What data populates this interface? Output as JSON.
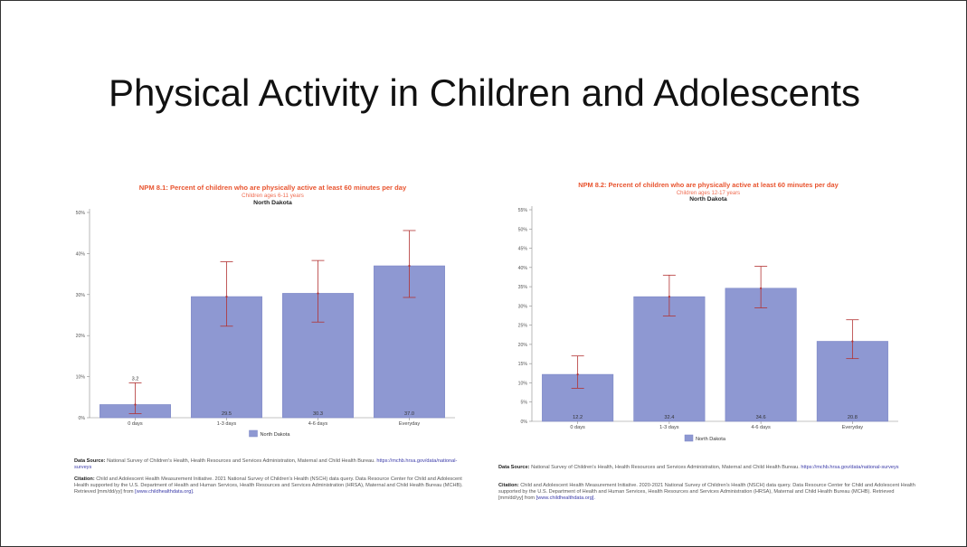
{
  "slide": {
    "title": "Physical Activity in Children and Adolescents"
  },
  "colors": {
    "bar": "#8e98d2",
    "bar_border": "#7b86c6",
    "error_bar": "#b23232",
    "title": "#e8542f",
    "subtitle": "#ef6d52"
  },
  "chart_data": [
    {
      "type": "bar",
      "title": "NPM 8.1: Percent of children who are physically active at least 60 minutes per day",
      "subtitle": "Children ages 6-11 years",
      "location": "North Dakota",
      "categories": [
        "0 days",
        "1-3 days",
        "4-6 days",
        "Everyday"
      ],
      "series": [
        {
          "name": "North Dakota",
          "values": [
            3.2,
            29.5,
            30.3,
            37.0
          ],
          "ci_low": [
            1.0,
            22.3,
            23.3,
            29.3
          ],
          "ci_high": [
            8.5,
            38.0,
            38.3,
            45.6
          ]
        }
      ],
      "data_labels": [
        "3.2",
        "29.5",
        "30.3",
        "37.0"
      ],
      "y_ticks": [
        "0%",
        "10%",
        "20%",
        "30%",
        "40%",
        "50%"
      ],
      "ylim": [
        0,
        50
      ],
      "legend": "bottom",
      "source_label": "Data Source:",
      "source_text": "National Survey of Children's Health, Health Resources and Services Administration, Maternal and Child Health Bureau.",
      "source_link": "https://mchb.hrsa.gov/data/national-surveys",
      "citation_label": "Citation:",
      "citation_text": "Child and Adolescent Health Measurement Initiative. 2021 National Survey of Children's Health (NSCH) data query. Data Resource Center for Child and Adolescent Health supported by the U.S. Department of Health and Human Services, Health Resources and Services Administration (HRSA), Maternal and Child Health Bureau (MCHB). Retrieved [mm/dd/yy] from",
      "citation_link": "[www.childhealthdata.org]."
    },
    {
      "type": "bar",
      "title": "NPM 8.2: Percent of children who are physically active at least 60 minutes per day",
      "subtitle": "Children ages 12-17 years",
      "location": "North Dakota",
      "categories": [
        "0 days",
        "1-3 days",
        "4-6 days",
        "Everyday"
      ],
      "series": [
        {
          "name": "North Dakota",
          "values": [
            12.2,
            32.4,
            34.6,
            20.8
          ],
          "ci_low": [
            8.6,
            27.4,
            29.5,
            16.3
          ],
          "ci_high": [
            17.0,
            38.0,
            40.3,
            26.4
          ]
        }
      ],
      "data_labels": [
        "12.2",
        "32.4",
        "34.6",
        "20.8"
      ],
      "y_ticks": [
        "0%",
        "5%",
        "10%",
        "15%",
        "20%",
        "25%",
        "30%",
        "35%",
        "40%",
        "45%",
        "50%",
        "55%"
      ],
      "ylim": [
        0,
        55
      ],
      "legend": "bottom",
      "source_label": "Data Source:",
      "source_text": "National Survey of Children's Health, Health Resources and Services Administration, Maternal and Child Health Bureau.",
      "source_link": "https://mchb.hrsa.gov/data/national-surveys",
      "citation_label": "Citation:",
      "citation_text": "Child and Adolescent Health Measurement Initiative. 2020-2021 National Survey of Children's Health (NSCH) data query. Data Resource Center for Child and Adolescent Health supported by the U.S. Department of Health and Human Services, Health Resources and Services Administration (HRSA), Maternal and Child Health Bureau (MCHB). Retrieved [mm/dd/yy] from",
      "citation_link": "[www.childhealthdata.org]."
    }
  ]
}
